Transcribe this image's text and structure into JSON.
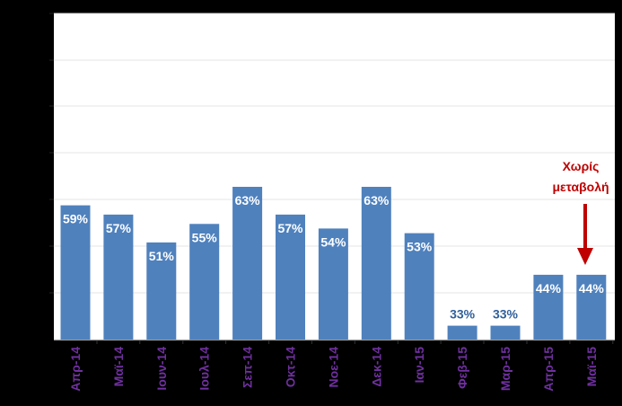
{
  "chart_data": {
    "type": "bar",
    "categories": [
      "Απρ-14",
      "Μαϊ-14",
      "Ιουν-14",
      "Ιουλ-14",
      "Σεπ-14",
      "Οκτ-14",
      "Νοε-14",
      "Δεκ-14",
      "Ιαν-15",
      "Φεβ-15",
      "Μαρ-15",
      "Απρ-15",
      "Μαϊ-15"
    ],
    "values": [
      59,
      57,
      51,
      55,
      63,
      57,
      54,
      63,
      53,
      33,
      33,
      44,
      44
    ],
    "data_labels": [
      "59%",
      "57%",
      "51%",
      "55%",
      "63%",
      "57%",
      "54%",
      "63%",
      "53%",
      "33%",
      "33%",
      "44%",
      "44%"
    ],
    "ylim": [
      30,
      100
    ],
    "grid": true,
    "title": "",
    "xlabel": "",
    "ylabel": "",
    "annotation": {
      "text_line1": "Χωρίς",
      "text_line2": "μεταβολή",
      "category_index": 12
    },
    "colors": {
      "bar": "#4f81bd",
      "label_inside": "#ffffff",
      "label_outside": "#2f5f9a",
      "category": "#7030a0",
      "annotation": "#c00000",
      "plot_bg": "#ffffff",
      "grid": "#e4e4e4"
    }
  }
}
